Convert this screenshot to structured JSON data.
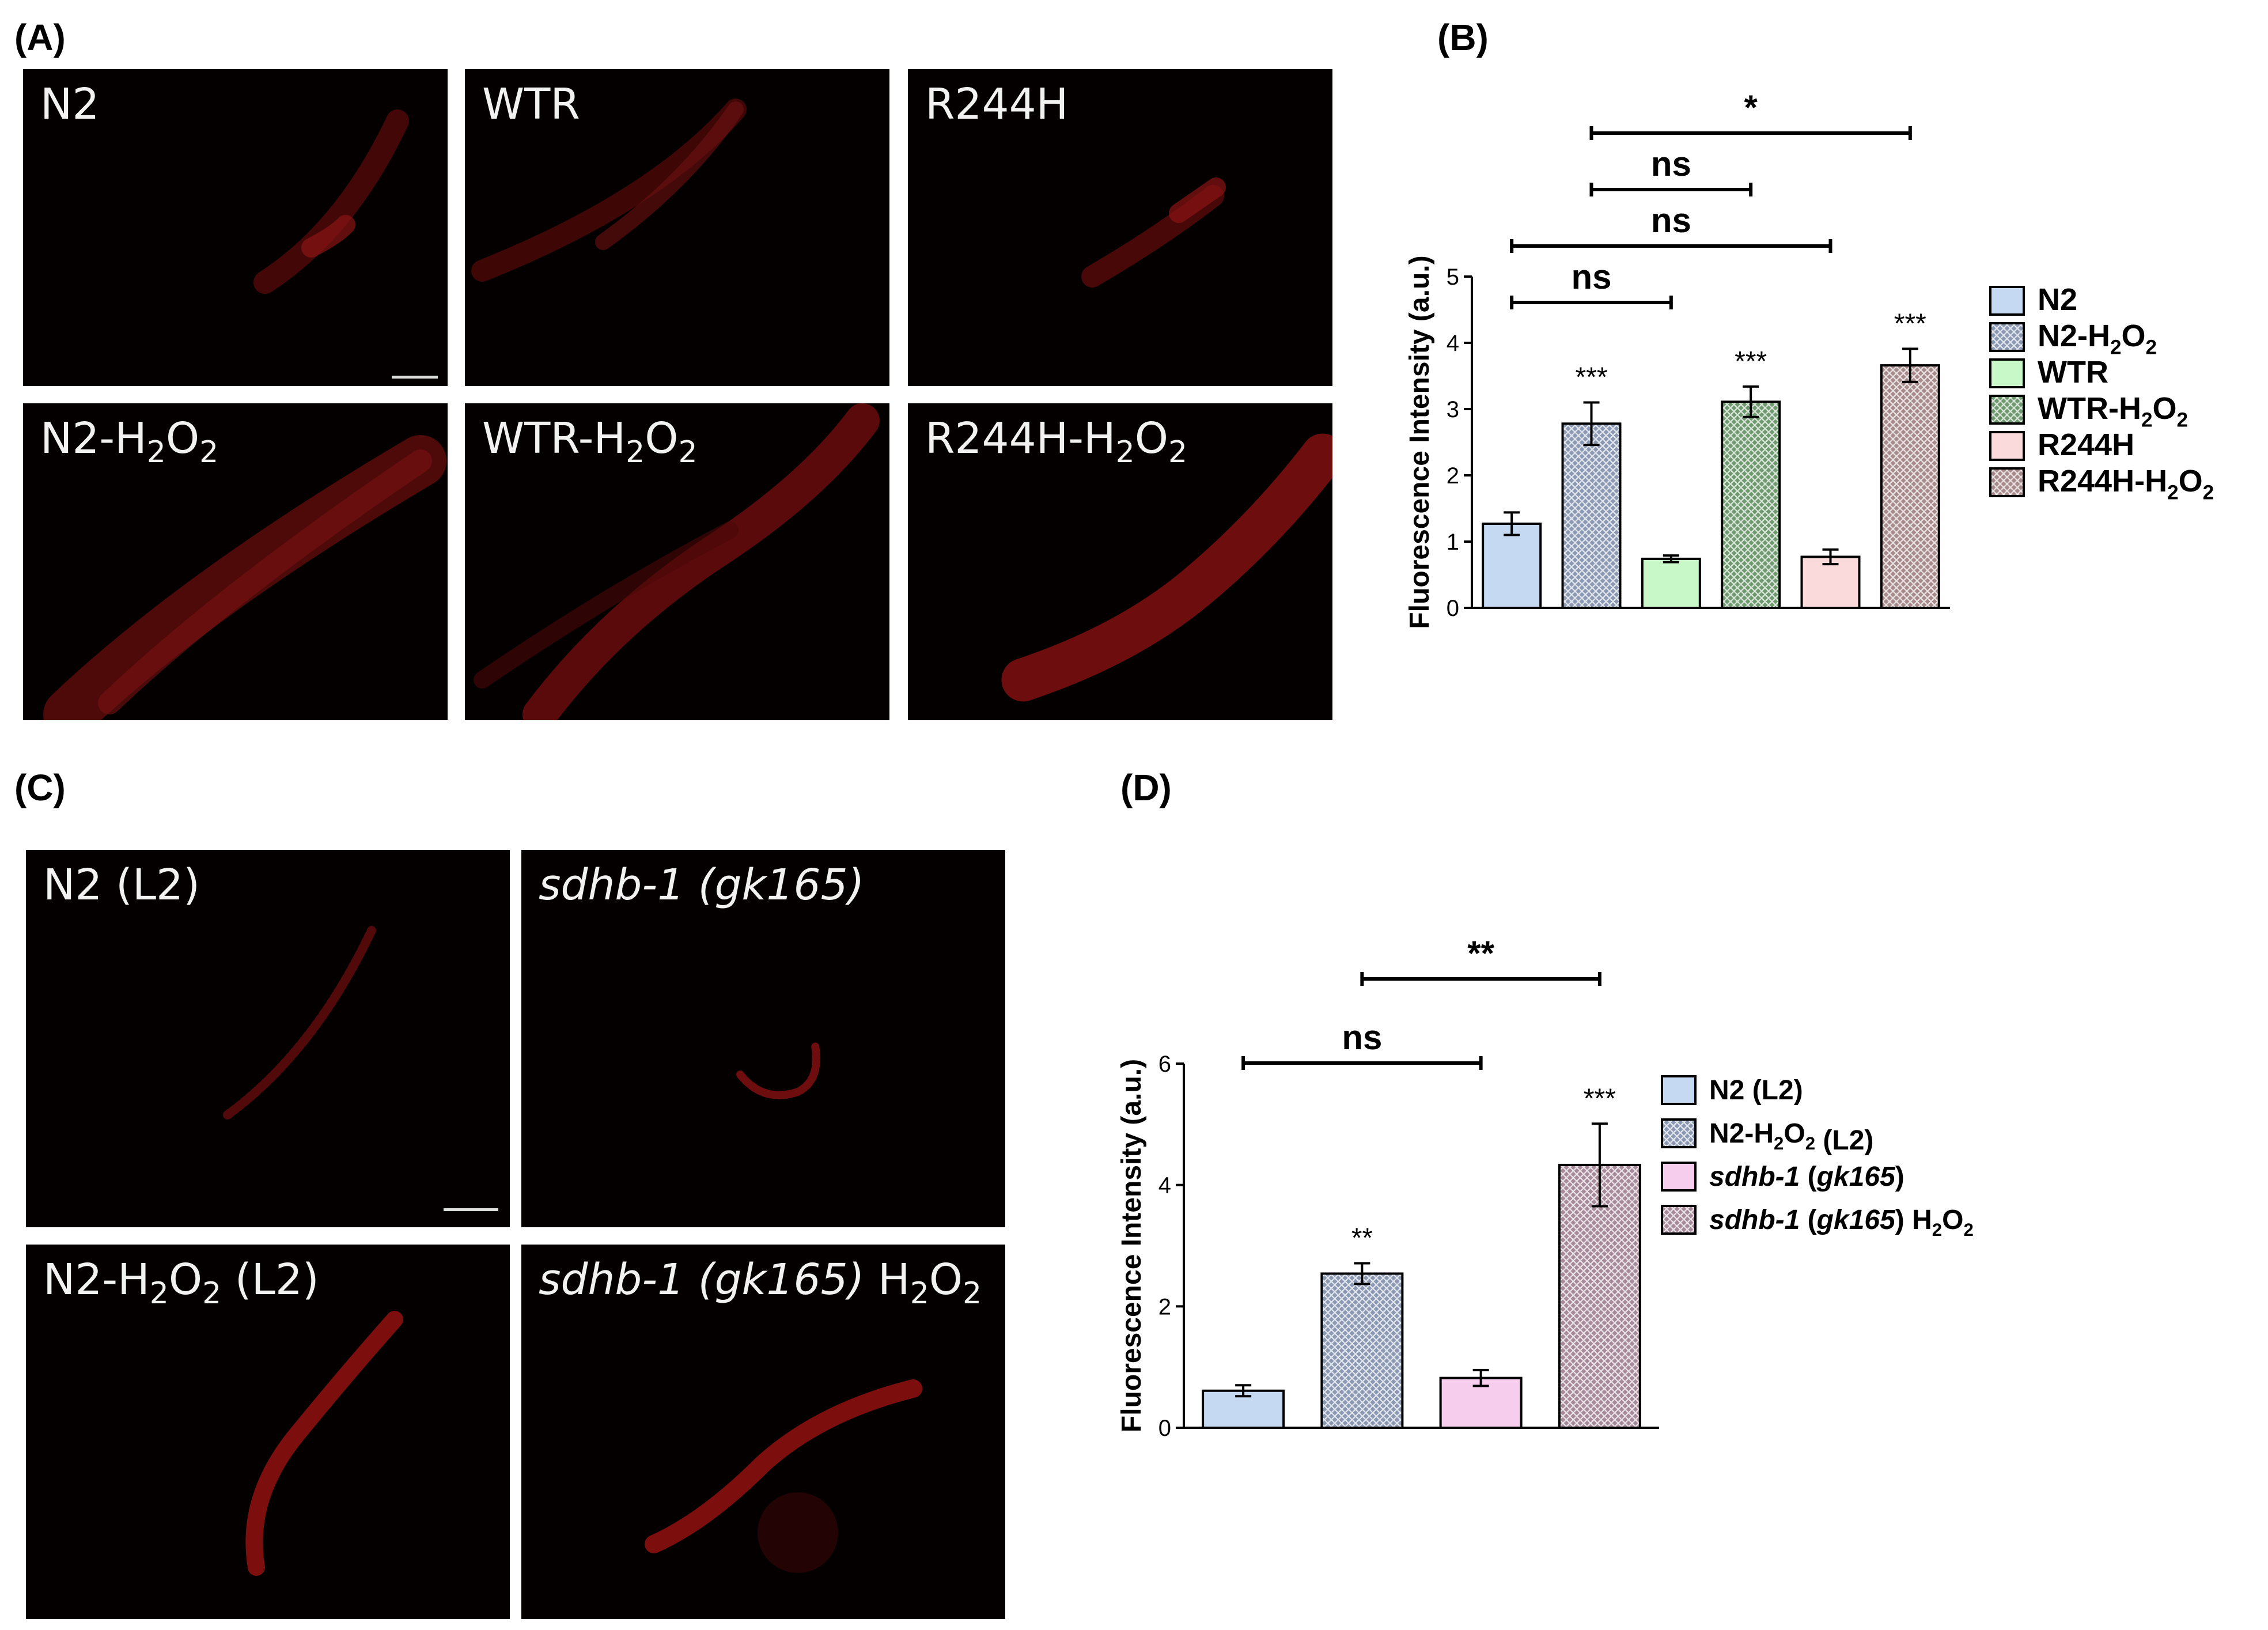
{
  "panels": {
    "A": {
      "label": "(A)",
      "images": [
        {
          "label": "N2"
        },
        {
          "label": "WTR"
        },
        {
          "label": "R244H"
        },
        {
          "label": "N2-H2O2"
        },
        {
          "label": "WTR-H2O2"
        },
        {
          "label": "R244H-H2O2"
        }
      ]
    },
    "B": {
      "label": "(B)"
    },
    "C": {
      "label": "(C)",
      "images": [
        {
          "label": "N2 (L2)"
        },
        {
          "label": "sdhb-1 (gk165)"
        },
        {
          "label": "N2-H2O2 (L2)"
        },
        {
          "label": "sdhb-1 (gk165) H2O2"
        }
      ]
    },
    "D": {
      "label": "(D)"
    }
  },
  "chart_data": [
    {
      "panel": "B",
      "type": "bar",
      "title": "",
      "xlabel": "",
      "ylabel": "Fluorescence Intensity (a.u.)",
      "ylim": [
        0,
        5
      ],
      "yticks": [
        "0",
        "1",
        "2",
        "3",
        "4",
        "5"
      ],
      "categories": [
        "N2",
        "N2-H2O2",
        "WTR",
        "WTR-H2O2",
        "R244H",
        "R244H-H2O2"
      ],
      "values": [
        1.27,
        2.78,
        0.74,
        3.11,
        0.77,
        3.66
      ],
      "errors": [
        0.17,
        0.32,
        0.05,
        0.23,
        0.11,
        0.25
      ],
      "colors": [
        "#c5daf2",
        "#8a98b2",
        "#c8f7c8",
        "#6f9a70",
        "#fbdadb",
        "#a78a8a"
      ],
      "patterns": [
        false,
        true,
        false,
        true,
        false,
        true
      ],
      "bar_annotations": [
        "",
        "***",
        "",
        "***",
        "",
        "***"
      ],
      "comparisons": [
        {
          "from": 0,
          "to": 2,
          "label": "ns"
        },
        {
          "from": 0,
          "to": 4,
          "label": "ns"
        },
        {
          "from": 1,
          "to": 3,
          "label": "ns"
        },
        {
          "from": 1,
          "to": 5,
          "label": "*"
        }
      ],
      "legend": {
        "position": "right",
        "entries": [
          "N2",
          "N2-H2O2",
          "WTR",
          "WTR-H2O2",
          "R244H",
          "R244H-H2O2"
        ]
      }
    },
    {
      "panel": "D",
      "type": "bar",
      "title": "",
      "xlabel": "",
      "ylabel": "Fluorescence Intensity (a.u.)",
      "ylim": [
        0,
        6
      ],
      "yticks": [
        "0",
        "2",
        "4",
        "6"
      ],
      "categories": [
        "N2 (L2)",
        "N2-H2O2 (L2)",
        "sdhb-1 (gk165)",
        "sdhb-1 (gk165) H2O2"
      ],
      "values": [
        0.61,
        2.54,
        0.82,
        4.33
      ],
      "errors": [
        0.09,
        0.17,
        0.13,
        0.68
      ],
      "colors": [
        "#c5daf2",
        "#8a98b2",
        "#f7cdee",
        "#a78a9a"
      ],
      "patterns": [
        false,
        true,
        false,
        true
      ],
      "bar_annotations": [
        "",
        "**",
        "",
        "***"
      ],
      "comparisons": [
        {
          "from": 0,
          "to": 2,
          "label": "ns"
        },
        {
          "from": 1,
          "to": 3,
          "label": "**"
        }
      ],
      "legend": {
        "position": "right",
        "entries": [
          "N2 (L2)",
          "N2-H2O2 (L2)",
          "sdhb-1 (gk165)",
          "sdhb-1 (gk165) H2O2"
        ]
      }
    }
  ]
}
